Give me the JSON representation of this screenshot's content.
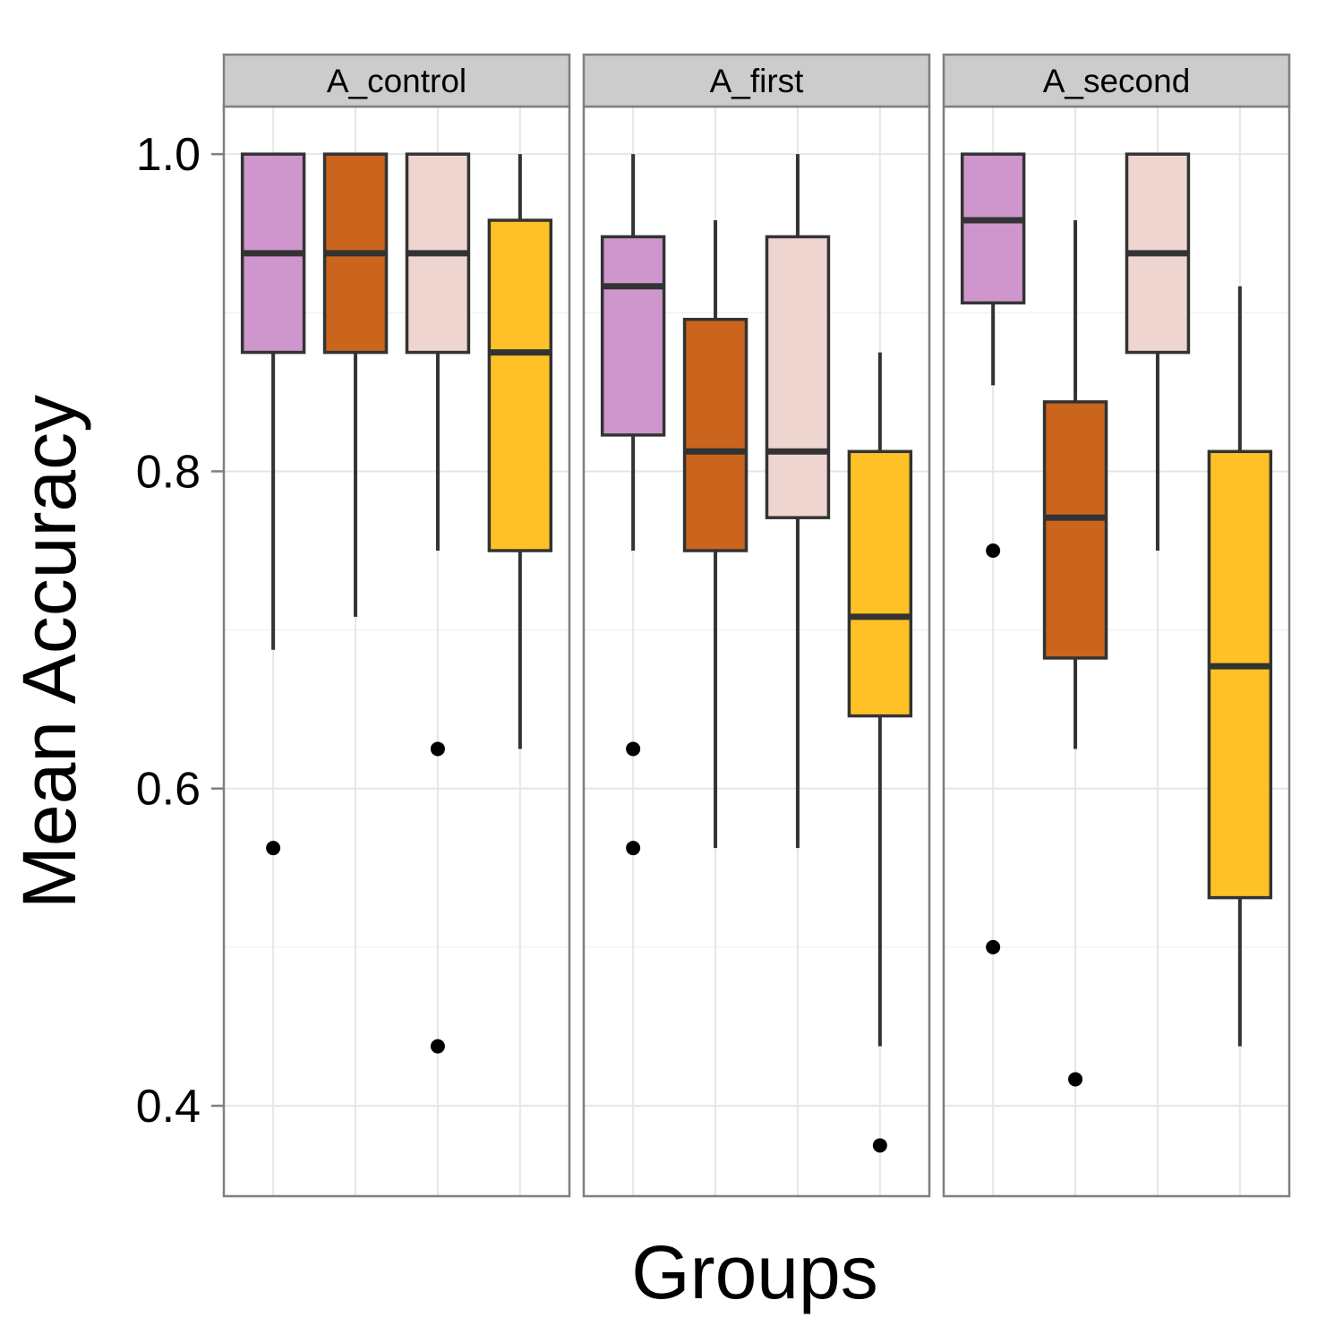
{
  "chart_data": {
    "type": "boxplot",
    "xlabel": "Groups",
    "ylabel": "Mean Accuracy",
    "ylim": [
      0.343,
      1.03
    ],
    "y_ticks": [
      0.4,
      0.6,
      0.8,
      1.0
    ],
    "y_tick_labels": [
      "0.4",
      "0.6",
      "0.8",
      "1.0"
    ],
    "grid": true,
    "series_colors": [
      "#CE96CD",
      "#CB641C",
      "#EED5D0",
      "#FEC126"
    ],
    "panels": [
      {
        "label": "A_control",
        "boxes": [
          {
            "q1": 0.875,
            "median": 0.9375,
            "q3": 1.0,
            "whisker_low": 0.6875,
            "whisker_high": 1.0,
            "outliers": [
              0.5625
            ]
          },
          {
            "q1": 0.875,
            "median": 0.9375,
            "q3": 1.0,
            "whisker_low": 0.7083,
            "whisker_high": 1.0,
            "outliers": []
          },
          {
            "q1": 0.875,
            "median": 0.9375,
            "q3": 1.0,
            "whisker_low": 0.75,
            "whisker_high": 1.0,
            "outliers": [
              0.625,
              0.4375
            ]
          },
          {
            "q1": 0.75,
            "median": 0.875,
            "q3": 0.9583,
            "whisker_low": 0.625,
            "whisker_high": 1.0,
            "outliers": []
          }
        ]
      },
      {
        "label": "A_first",
        "boxes": [
          {
            "q1": 0.8229,
            "median": 0.9167,
            "q3": 0.9479,
            "whisker_low": 0.75,
            "whisker_high": 1.0,
            "outliers": [
              0.625,
              0.5625
            ]
          },
          {
            "q1": 0.75,
            "median": 0.8125,
            "q3": 0.8958,
            "whisker_low": 0.5625,
            "whisker_high": 0.9583,
            "outliers": []
          },
          {
            "q1": 0.7708,
            "median": 0.8125,
            "q3": 0.9479,
            "whisker_low": 0.5625,
            "whisker_high": 1.0,
            "outliers": []
          },
          {
            "q1": 0.6458,
            "median": 0.7083,
            "q3": 0.8125,
            "whisker_low": 0.4375,
            "whisker_high": 0.875,
            "outliers": [
              0.375
            ]
          }
        ]
      },
      {
        "label": "A_second",
        "boxes": [
          {
            "q1": 0.9062,
            "median": 0.9583,
            "q3": 1.0,
            "whisker_low": 0.8542,
            "whisker_high": 1.0,
            "outliers": [
              0.75,
              0.5
            ]
          },
          {
            "q1": 0.6823,
            "median": 0.7708,
            "q3": 0.8438,
            "whisker_low": 0.625,
            "whisker_high": 0.9583,
            "outliers": [
              0.4167
            ]
          },
          {
            "q1": 0.875,
            "median": 0.9375,
            "q3": 1.0,
            "whisker_low": 0.75,
            "whisker_high": 1.0,
            "outliers": []
          },
          {
            "q1": 0.5312,
            "median": 0.6771,
            "q3": 0.8125,
            "whisker_low": 0.4375,
            "whisker_high": 0.9167,
            "outliers": []
          }
        ]
      }
    ]
  }
}
